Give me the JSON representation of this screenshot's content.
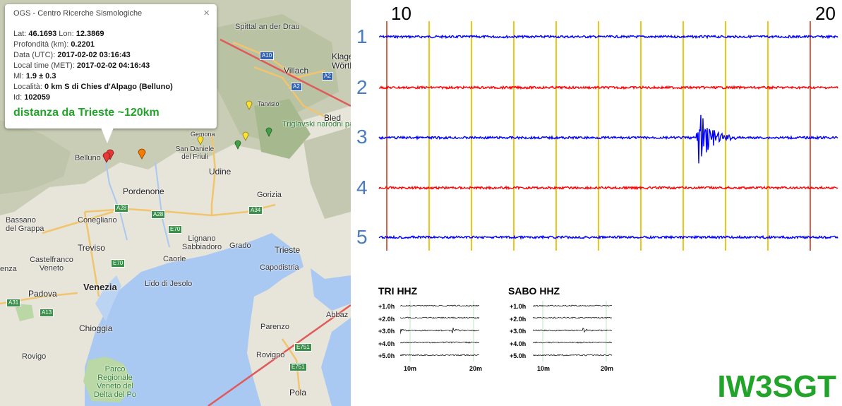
{
  "map": {
    "labels": {
      "spittal": "Spittal an der Drau",
      "villach": "Villach",
      "klagenfurt": "Klage\nWörth",
      "tarvisio": "Tarvisio",
      "bled": "Bled",
      "triglav": "Triglavski narodni park",
      "gemona": "Gemona",
      "sandaniele": "San Daniele del Friuli",
      "udine": "Udine",
      "belluno": "Belluno",
      "pordenone": "Pordenone",
      "gorizia": "Gorizia",
      "conegliano": "Conegliano",
      "bassano": "Bassano del Grappa",
      "lignano": "Lignano Sabbiadoro",
      "grado": "Grado",
      "treviso": "Treviso",
      "castelfranco": "Castelfranco Veneto",
      "caorle": "Caorle",
      "trieste": "Trieste",
      "capodistria": "Capodistria",
      "venezia": "Venezia",
      "padova": "Padova",
      "lidojesolo": "Lido di Jesolo",
      "chioggia": "Chioggia",
      "parenzo": "Parenzo",
      "abbaz": "Abbaz",
      "rovigo": "Rovigo",
      "rovigno": "Rovigno",
      "parco": "Parco Regionale Veneto del Delta del Po",
      "pola": "Pola",
      "enza": "enza"
    },
    "shields": [
      "A10",
      "A2",
      "A2",
      "A28",
      "A28",
      "E70",
      "A34",
      "E70",
      "A31",
      "A13",
      "E751",
      "E751"
    ],
    "popup": {
      "title": "OGS - Centro Ricerche Sismologiche",
      "close": "×",
      "lat_label": "Lat:",
      "lat": "46.1693",
      "lon_label": "Lon:",
      "lon": "12.3869",
      "depth_label": "Profondità (km):",
      "depth": "0.2201",
      "utc_label": "Data (UTC):",
      "utc": "2017-02-02 03:16:43",
      "local_label": "Local time (MET):",
      "local": "2017-02-02 04:16:43",
      "ml_label": "Ml:",
      "ml": "1.9 ± 0.3",
      "loc_label": "Località:",
      "loc": "0 km S di Chies d'Alpago (Belluno)",
      "id_label": "Id:",
      "id": "102059",
      "distance": "distanza da Trieste ~120km"
    },
    "marker_colors": {
      "event": "#e53935",
      "orange": "#f57c00",
      "yellow": "#fbe134",
      "green": "#43a047"
    },
    "water_color": "#a9c8f2",
    "land_color": "#e7e4d9"
  },
  "chart_data": [
    {
      "type": "line",
      "title": "",
      "x_ticks": [
        "10",
        "20"
      ],
      "x_range": [
        10,
        20
      ],
      "channels": [
        "1",
        "2",
        "3",
        "4",
        "5"
      ],
      "channel_colors": [
        "#0000ff",
        "#ff0000",
        "#0000ff",
        "#ff0000",
        "#0000ff"
      ],
      "event_channel": "3",
      "event_x": 17.35,
      "major_grid_color": "#d03a1a",
      "minor_grid_color": "#f2c318"
    },
    {
      "type": "line",
      "title": "TRI HHZ",
      "rows": [
        "+1.0h",
        "+2.0h",
        "+3.0h",
        "+4.0h",
        "+5.0h"
      ],
      "x_ticks": [
        "10m",
        "20m"
      ],
      "event_row": "+3.0h"
    },
    {
      "type": "line",
      "title": "SABO HHZ",
      "rows": [
        "+1.0h",
        "+2.0h",
        "+3.0h",
        "+4.0h",
        "+5.0h"
      ],
      "x_ticks": [
        "10m",
        "20m"
      ],
      "event_row": "+3.0h"
    }
  ],
  "callsign": "IW3SGT"
}
